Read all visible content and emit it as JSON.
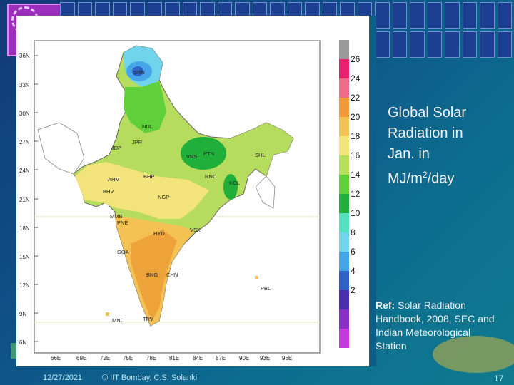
{
  "slide": {
    "title_line1": "Global Solar",
    "title_line2": "Radiation in",
    "title_line3": "Jan. in",
    "title_line4_pre": "MJ/m",
    "title_line4_sup": "2",
    "title_line4_post": "/day",
    "ref_label": "Ref:",
    "ref_text": "Solar Radiation Handbook, 2008, SEC and Indian Meteorological Station",
    "footer_date": "12/27/2021",
    "footer_copy": "© IIT Bombay, C.S. Solanki",
    "page_number": "17"
  },
  "map": {
    "lat_labels": [
      "36N",
      "33N",
      "30N",
      "27N",
      "24N",
      "21N",
      "18N",
      "15N",
      "12N",
      "9N",
      "6N"
    ],
    "lon_labels": [
      "66E",
      "69E",
      "72E",
      "75E",
      "78E",
      "81E",
      "84E",
      "87E",
      "90E",
      "93E",
      "96E"
    ],
    "stations": {
      "srn": "SRN",
      "ndl": "NDL",
      "jpr": "JPR",
      "jdp": "JDP",
      "vns": "VNS",
      "ptn": "PTN",
      "shl": "SHL",
      "ahm": "AHM",
      "bhp": "BHP",
      "rnc": "RNC",
      "kol": "KOL",
      "bhv": "BHV",
      "ngp": "NGP",
      "mmb": "MMB",
      "pne": "PNE",
      "hyd": "HYD",
      "vsk": "VSK",
      "goa": "GOA",
      "bng": "BNG",
      "chn": "CHN",
      "pbl": "PBL",
      "mnc": "MNC",
      "trv": "TRV"
    }
  },
  "legend": {
    "labels": [
      "26",
      "24",
      "22",
      "20",
      "18",
      "16",
      "14",
      "12",
      "10",
      "8",
      "6",
      "4",
      "2"
    ],
    "colors": [
      "#9a9a9a",
      "#e8206e",
      "#ee6b8a",
      "#f29a3a",
      "#f4c155",
      "#f2e37a",
      "#b6df5a",
      "#5fcf3a",
      "#1faf3a",
      "#55e0c0",
      "#6fd4ec",
      "#44a6e8",
      "#2f62c8",
      "#4b2fb0",
      "#8a2fc8",
      "#c33bdc"
    ]
  }
}
